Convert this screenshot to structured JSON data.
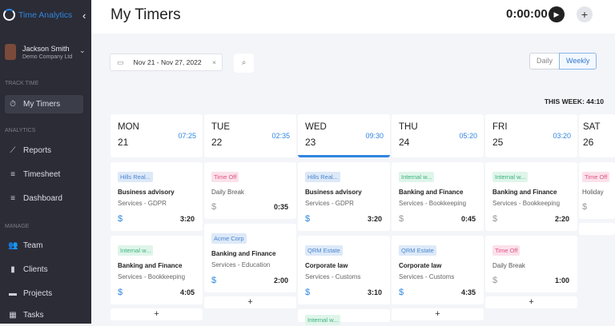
{
  "sidebar": {
    "app_name": "Time Analytics",
    "user": {
      "name": "Jackson Smith",
      "company": "Demo Company Ltd"
    },
    "sections": {
      "track": "TRACK TIME",
      "analytics": "ANALYTICS",
      "manage": "MANAGE"
    },
    "items": [
      {
        "label": "My Timers",
        "icon": "stopwatch-icon"
      },
      {
        "label": "Reports",
        "icon": "chart-line-icon"
      },
      {
        "label": "Timesheet",
        "icon": "list-check-icon"
      },
      {
        "label": "Dashboard",
        "icon": "list-check-icon"
      },
      {
        "label": "Team",
        "icon": "users-icon"
      },
      {
        "label": "Clients",
        "icon": "file-icon"
      },
      {
        "label": "Projects",
        "icon": "folder-icon"
      },
      {
        "label": "Tasks",
        "icon": "grid-icon"
      }
    ]
  },
  "header": {
    "title": "My Timers",
    "timer": "0:00:00"
  },
  "filters": {
    "date_range": "Nov 21 - Nov 27, 2022",
    "view_daily": "Daily",
    "view_weekly": "Weekly"
  },
  "week_total": "THIS WEEK: 44:10",
  "days": [
    {
      "name": "MON",
      "num": "21",
      "total": "07:25",
      "entries": [
        {
          "client": "Hills Real...",
          "color": "blue",
          "project": "Business advisory",
          "service": "Services - GDPR",
          "billable": true,
          "duration": "3:20"
        },
        {
          "client": "Internal w...",
          "color": "green",
          "project": "Banking and Finance",
          "service": "Services - Bookkeeping",
          "billable": true,
          "duration": "4:05"
        }
      ]
    },
    {
      "name": "TUE",
      "num": "22",
      "total": "02:35",
      "entries": [
        {
          "client": "Time Off",
          "color": "pink",
          "project": "Daily Break",
          "service": "",
          "billable": false,
          "duration": "0:35"
        },
        {
          "client": "Acme Corp",
          "color": "blue",
          "project": "Banking and Finance",
          "service": "Services - Education",
          "billable": true,
          "duration": "2:00"
        }
      ]
    },
    {
      "name": "WED",
      "num": "23",
      "total": "09:30",
      "entries": [
        {
          "client": "Hills Real...",
          "color": "blue",
          "project": "Business advisory",
          "service": "Services - GDPR",
          "billable": true,
          "duration": "3:20"
        },
        {
          "client": "QRM Estate",
          "color": "blue",
          "project": "Corporate law",
          "service": "Services - Customs",
          "billable": true,
          "duration": "3:10"
        },
        {
          "client": "Internal w...",
          "color": "green",
          "project": "",
          "service": "",
          "billable": false,
          "duration": ""
        }
      ]
    },
    {
      "name": "THU",
      "num": "24",
      "total": "05:20",
      "entries": [
        {
          "client": "Internal w...",
          "color": "green",
          "project": "Banking and Finance",
          "service": "Services - Bookkeeping",
          "billable": false,
          "duration": "0:45"
        },
        {
          "client": "QRM Estate",
          "color": "blue",
          "project": "Corporate law",
          "service": "Services - Customs",
          "billable": true,
          "duration": "4:35"
        }
      ]
    },
    {
      "name": "FRI",
      "num": "25",
      "total": "03:20",
      "entries": [
        {
          "client": "Internal w...",
          "color": "green",
          "project": "Banking and Finance",
          "service": "Services - Bookkeeping",
          "billable": false,
          "duration": "2:20"
        },
        {
          "client": "Time Off",
          "color": "pink",
          "project": "Daily Break",
          "service": "",
          "billable": false,
          "duration": "1:00"
        }
      ]
    },
    {
      "name": "SAT",
      "num": "26",
      "total": "",
      "entries": [
        {
          "client": "Time Off",
          "color": "pink",
          "project": "Holiday",
          "service": "",
          "billable": false,
          "duration": ""
        }
      ]
    }
  ]
}
